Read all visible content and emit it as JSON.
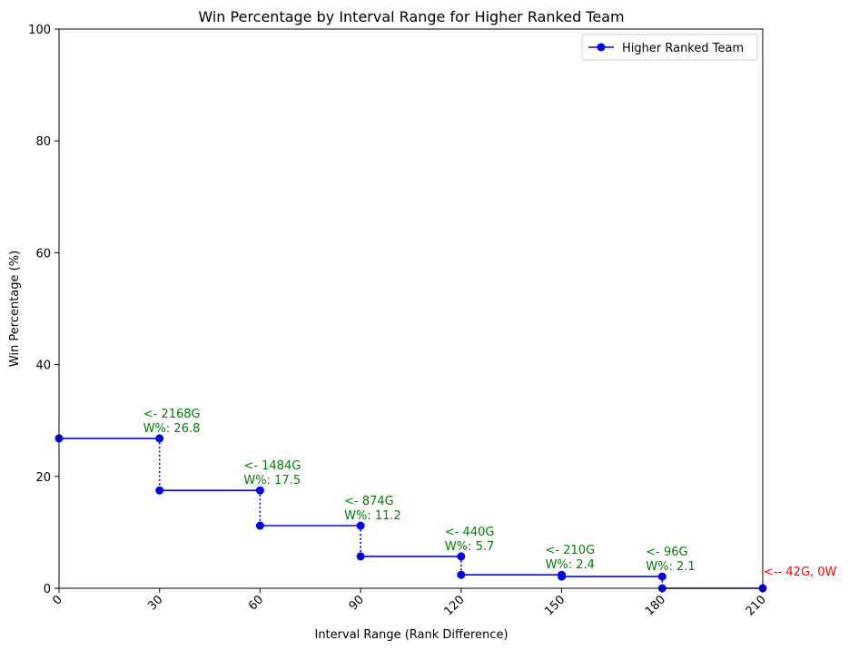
{
  "chart_data": {
    "type": "line",
    "title": "Win Percentage by Interval Range for Higher Ranked Team",
    "xlabel": "Interval Range (Rank Difference)",
    "ylabel": "Win Percentage (%)",
    "xlim": [
      0,
      210
    ],
    "ylim": [
      0,
      100
    ],
    "xticks": [
      "0",
      "30",
      "60",
      "90",
      "120",
      "150",
      "180",
      "210"
    ],
    "yticks": [
      "0",
      "20",
      "40",
      "60",
      "80",
      "100"
    ],
    "xtick_rotation_deg": 45,
    "grid": false,
    "legend": {
      "placement": "top-right",
      "entries": [
        "Higher Ranked Team"
      ]
    },
    "series": [
      {
        "name": "Higher Ranked Team",
        "color": "#0000ff",
        "style": "step",
        "segments": [
          {
            "x_start": 0,
            "x_end": 30,
            "y": 26.8
          },
          {
            "x_start": 30,
            "x_end": 60,
            "y": 17.5
          },
          {
            "x_start": 60,
            "x_end": 90,
            "y": 11.2
          },
          {
            "x_start": 90,
            "x_end": 120,
            "y": 5.7
          },
          {
            "x_start": 120,
            "x_end": 150,
            "y": 2.4
          },
          {
            "x_start": 150,
            "x_end": 180,
            "y": 2.1
          },
          {
            "x_start": 180,
            "x_end": 210,
            "y": 0
          }
        ]
      }
    ],
    "annotations": [
      {
        "x": 30,
        "y": 26.8,
        "lines": [
          "<- 2168G",
          "W%: 26.8"
        ],
        "color": "#008000"
      },
      {
        "x": 60,
        "y": 17.5,
        "lines": [
          "<- 1484G",
          "W%: 17.5"
        ],
        "color": "#008000"
      },
      {
        "x": 90,
        "y": 11.2,
        "lines": [
          "<- 874G",
          "W%: 11.2"
        ],
        "color": "#008000"
      },
      {
        "x": 120,
        "y": 5.7,
        "lines": [
          "<- 440G",
          "W%: 5.7"
        ],
        "color": "#008000"
      },
      {
        "x": 150,
        "y": 2.4,
        "lines": [
          "<- 210G",
          "W%: 2.4"
        ],
        "color": "#008000"
      },
      {
        "x": 180,
        "y": 2.1,
        "lines": [
          "<- 96G",
          "W%: 2.1"
        ],
        "color": "#008000"
      },
      {
        "x": 210,
        "y": 0,
        "lines": [
          "<-- 42G, 0W"
        ],
        "color": "#ff0000"
      }
    ]
  }
}
